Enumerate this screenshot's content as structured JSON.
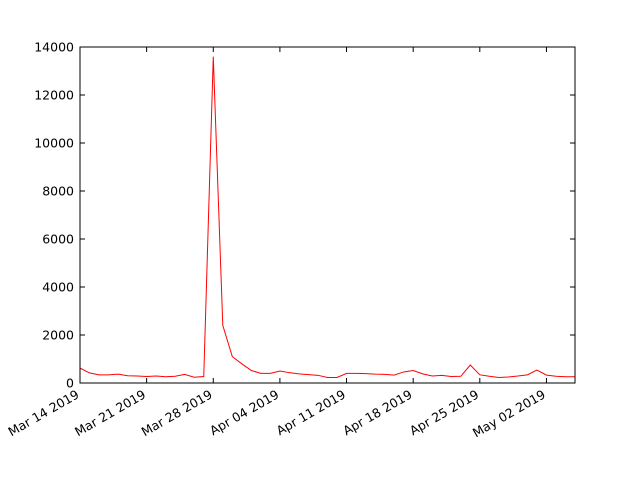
{
  "chart_data": {
    "type": "line",
    "x": [
      "2019-03-14",
      "2019-03-15",
      "2019-03-16",
      "2019-03-17",
      "2019-03-18",
      "2019-03-19",
      "2019-03-20",
      "2019-03-21",
      "2019-03-22",
      "2019-03-23",
      "2019-03-24",
      "2019-03-25",
      "2019-03-26",
      "2019-03-27",
      "2019-03-28",
      "2019-03-29",
      "2019-03-30",
      "2019-03-31",
      "2019-04-01",
      "2019-04-02",
      "2019-04-03",
      "2019-04-04",
      "2019-04-05",
      "2019-04-06",
      "2019-04-07",
      "2019-04-08",
      "2019-04-09",
      "2019-04-10",
      "2019-04-11",
      "2019-04-12",
      "2019-04-13",
      "2019-04-14",
      "2019-04-15",
      "2019-04-16",
      "2019-04-17",
      "2019-04-18",
      "2019-04-19",
      "2019-04-20",
      "2019-04-21",
      "2019-04-22",
      "2019-04-23",
      "2019-04-24",
      "2019-04-25",
      "2019-04-26",
      "2019-04-27",
      "2019-04-28",
      "2019-04-29",
      "2019-04-30",
      "2019-05-01",
      "2019-05-02",
      "2019-05-03",
      "2019-05-04",
      "2019-05-05"
    ],
    "series": [
      {
        "color": "#ff0000",
        "values": [
          620,
          420,
          340,
          340,
          370,
          300,
          290,
          270,
          290,
          260,
          280,
          360,
          240,
          270,
          13600,
          2400,
          1100,
          800,
          520,
          400,
          400,
          500,
          430,
          380,
          350,
          320,
          230,
          230,
          400,
          400,
          390,
          370,
          360,
          330,
          460,
          520,
          380,
          290,
          320,
          270,
          280,
          750,
          340,
          280,
          230,
          250,
          290,
          340,
          540,
          330,
          280,
          260,
          260
        ]
      }
    ],
    "xlim": [
      "2019-03-14",
      "2019-05-05"
    ],
    "xticks": [
      {
        "value": "2019-03-14",
        "label": "Mar 14 2019"
      },
      {
        "value": "2019-03-21",
        "label": "Mar 21 2019"
      },
      {
        "value": "2019-03-28",
        "label": "Mar 28 2019"
      },
      {
        "value": "2019-04-04",
        "label": "Apr 04 2019"
      },
      {
        "value": "2019-04-11",
        "label": "Apr 11 2019"
      },
      {
        "value": "2019-04-18",
        "label": "Apr 18 2019"
      },
      {
        "value": "2019-04-25",
        "label": "Apr 25 2019"
      },
      {
        "value": "2019-05-02",
        "label": "May 02 2019"
      }
    ],
    "ylim": [
      0,
      14000
    ],
    "yticks": [
      0,
      2000,
      4000,
      6000,
      8000,
      10000,
      12000,
      14000
    ],
    "grid": false
  }
}
